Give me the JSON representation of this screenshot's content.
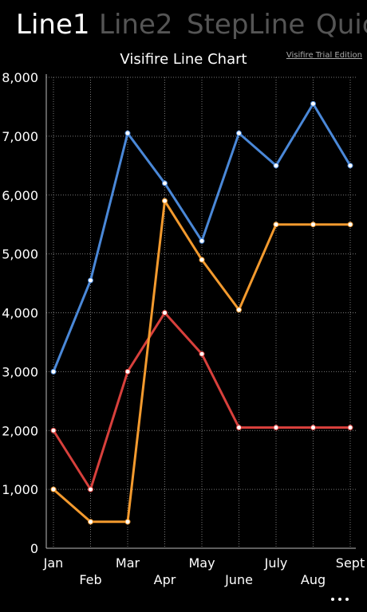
{
  "pivot": [
    "Line1",
    "Line2",
    "StepLine",
    "Quic"
  ],
  "watermark": "Visifire Trial Edition",
  "chart_data": {
    "type": "line",
    "title": "Visifire Line Chart",
    "categories": [
      "Jan",
      "Feb",
      "Mar",
      "Apr",
      "May",
      "June",
      "July",
      "Aug",
      "Sept"
    ],
    "series": [
      {
        "color": "#4a88d8",
        "values": [
          3000,
          4550,
          7050,
          6200,
          5220,
          7050,
          6500,
          7550,
          6500
        ]
      },
      {
        "color": "#d8403c",
        "values": [
          2000,
          1000,
          3000,
          4000,
          3300,
          2050,
          2050,
          2050,
          2050
        ]
      },
      {
        "color": "#f39a2e",
        "values": [
          1000,
          450,
          450,
          5900,
          4900,
          4050,
          5500,
          5500,
          5500
        ]
      }
    ],
    "ylim": [
      0,
      8000
    ],
    "yticks": [
      0,
      {
        "value": 1000,
        "label": "1,000"
      },
      {
        "value": 2000,
        "label": "2,000"
      },
      {
        "value": 3000,
        "label": "3,000"
      },
      {
        "value": 4000,
        "label": "4,000"
      },
      {
        "value": 5000,
        "label": "5,000"
      },
      {
        "value": 6000,
        "label": "6,000"
      },
      {
        "value": 7000,
        "label": "7,000"
      },
      {
        "value": 8000,
        "label": "8,000"
      }
    ],
    "grid": true
  }
}
